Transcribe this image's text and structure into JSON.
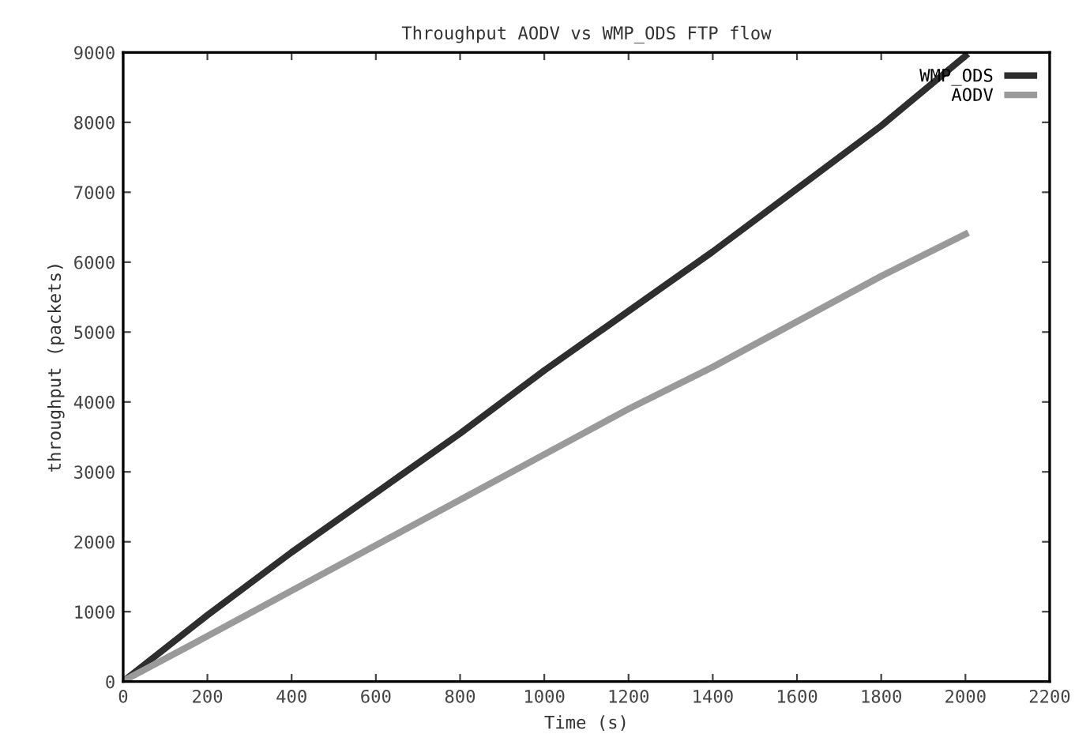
{
  "chart_data": {
    "type": "line",
    "title": "Throughput AODV vs WMP_ODS FTP flow",
    "xlabel": "Time (s)",
    "ylabel": "throughput (packets)",
    "xlim": [
      0,
      2200
    ],
    "xticks": [
      0,
      200,
      400,
      600,
      800,
      1000,
      1200,
      1400,
      1600,
      1800,
      2000,
      2200
    ],
    "ylim": [
      0,
      9000
    ],
    "yticks": [
      0,
      1000,
      2000,
      3000,
      4000,
      5000,
      6000,
      7000,
      8000,
      9000
    ],
    "grid": false,
    "legend": "top right",
    "series": [
      {
        "name": "WMP_ODS",
        "color": "#2e2e2e",
        "x": [
          10,
          200,
          400,
          600,
          800,
          1000,
          1200,
          1400,
          1600,
          1800,
          2000
        ],
        "values": [
          50,
          950,
          1850,
          2700,
          3550,
          4450,
          5300,
          6150,
          7050,
          7950,
          8950
        ]
      },
      {
        "name": "AODV",
        "color": "#9a9a9a",
        "x": [
          10,
          200,
          400,
          600,
          800,
          1000,
          1200,
          1400,
          1600,
          1800,
          2000
        ],
        "values": [
          40,
          650,
          1300,
          1950,
          2600,
          3250,
          3900,
          4500,
          5150,
          5800,
          6400
        ]
      }
    ]
  }
}
